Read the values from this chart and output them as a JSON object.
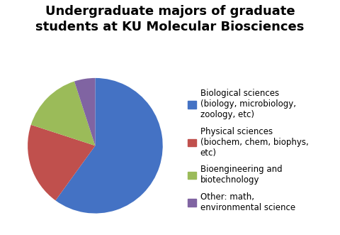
{
  "title": "Undergraduate majors of graduate\nstudents at KU Molecular Biosciences",
  "slices": [
    {
      "label": "Biological sciences\n(biology, microbiology,\nzoology, etc)",
      "value": 60,
      "color": "#4472C4"
    },
    {
      "label": "Physical sciences\n(biochem, chem, biophys,\netc)",
      "value": 20,
      "color": "#C0504D"
    },
    {
      "label": "Bioengineering and\nbiotechnology",
      "value": 15,
      "color": "#9BBB59"
    },
    {
      "label": "Other: math,\nenvironmental science",
      "value": 5,
      "color": "#8064A2"
    }
  ],
  "title_fontsize": 13,
  "legend_fontsize": 8.5,
  "background_color": "#ffffff",
  "startangle": 90
}
